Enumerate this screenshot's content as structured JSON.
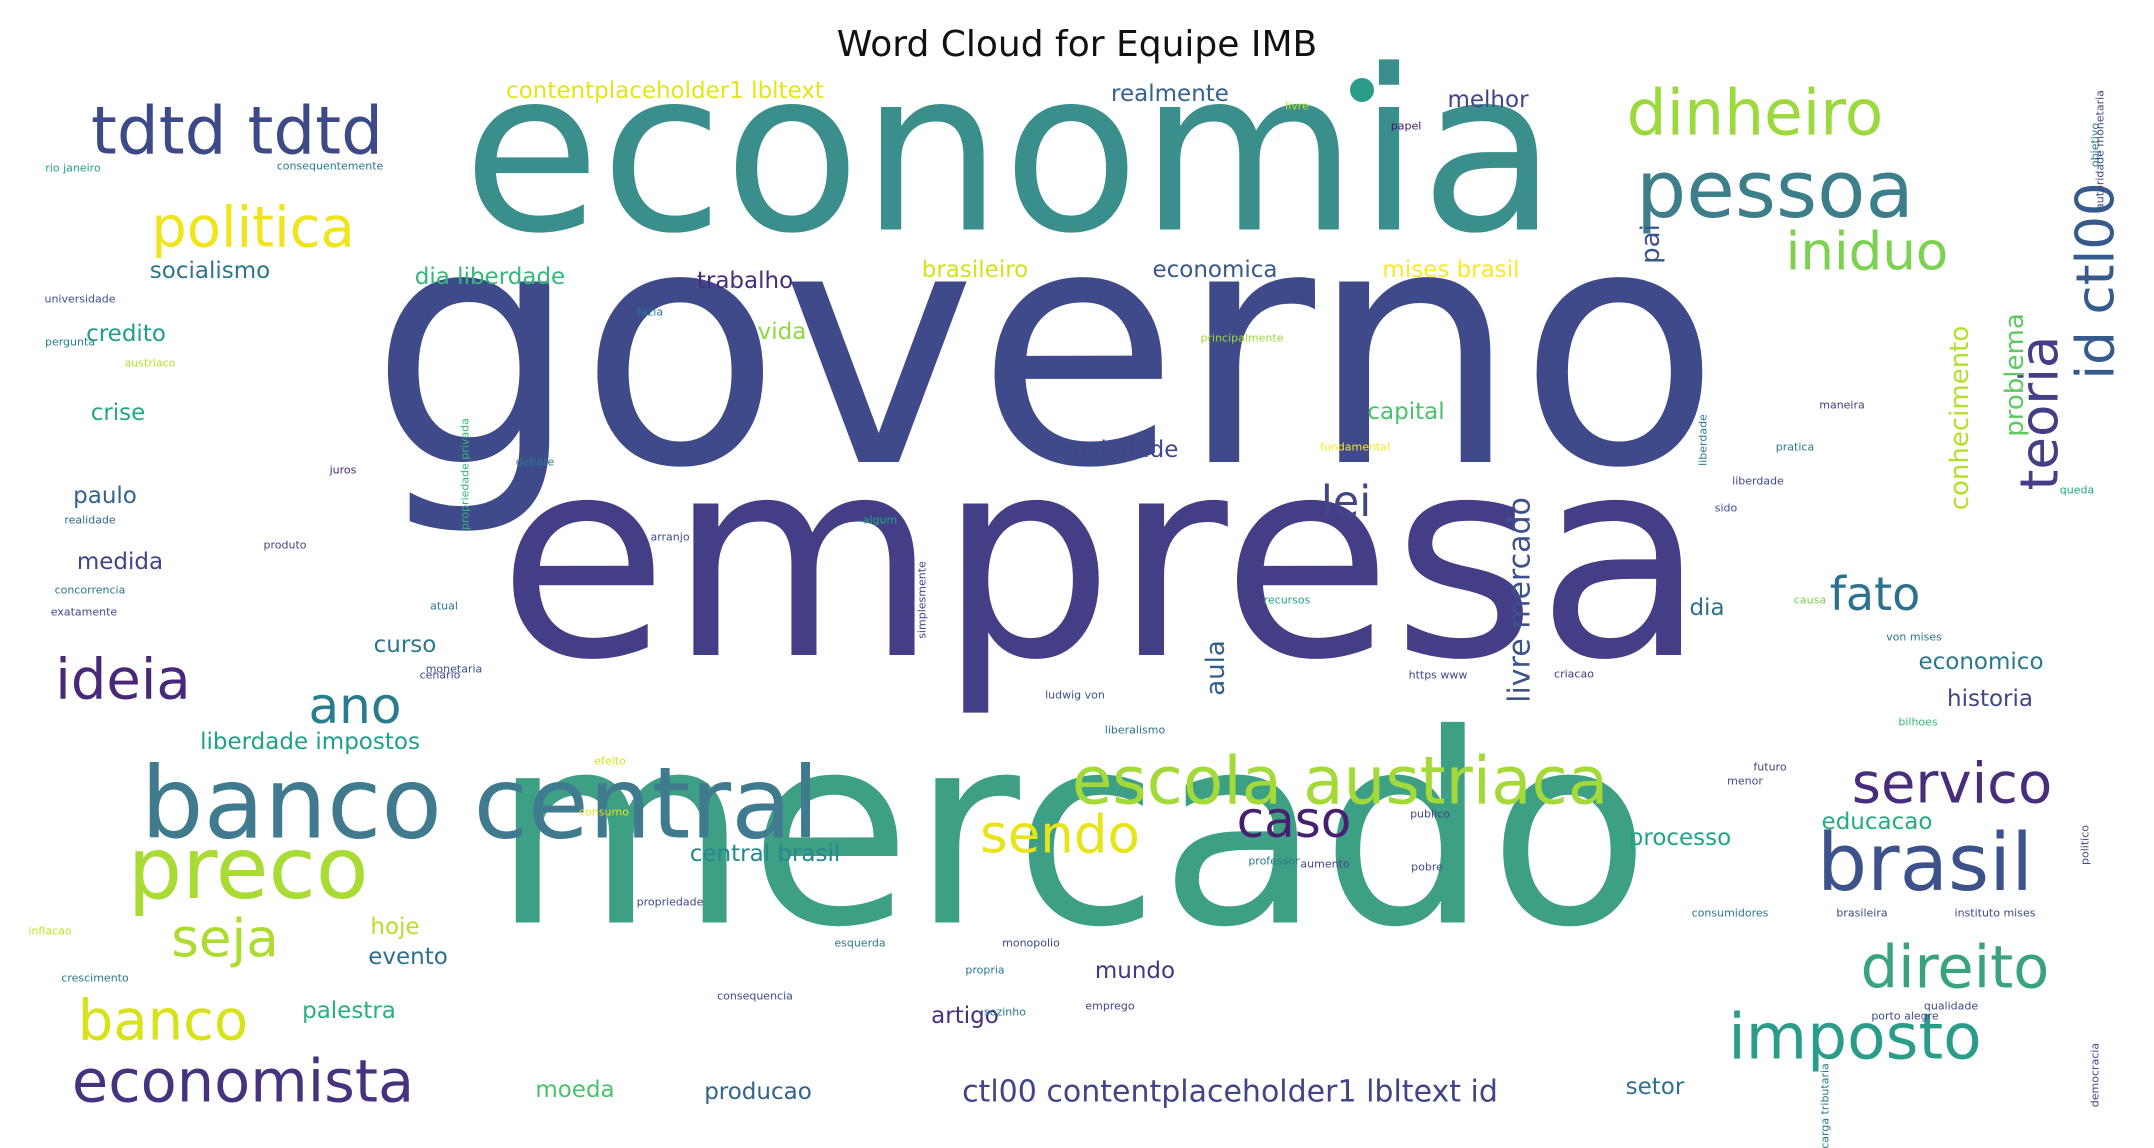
{
  "chart_data": {
    "type": "wordcloud",
    "title": "Word Cloud for Equipe IMB",
    "words": [
      {
        "text": "governo",
        "weight": 1.0,
        "color": "#3e4a89",
        "rotate": 0
      },
      {
        "text": "empresa",
        "weight": 0.84,
        "color": "#433e85",
        "rotate": 0
      },
      {
        "text": "mercado",
        "weight": 0.8,
        "color": "#3d9f84",
        "rotate": 0
      },
      {
        "text": "economia",
        "weight": 0.68,
        "color": "#3a8f8c",
        "rotate": 0
      },
      {
        "text": "banco central",
        "weight": 0.3,
        "color": "#3f7a8e",
        "rotate": 0
      },
      {
        "text": "preco",
        "weight": 0.26,
        "color": "#a8db34",
        "rotate": 0
      },
      {
        "text": "pessoa",
        "weight": 0.24,
        "color": "#3d7e8b",
        "rotate": 0
      },
      {
        "text": "brasil",
        "weight": 0.24,
        "color": "#3b528b",
        "rotate": 0
      },
      {
        "text": "escola austriaca",
        "weight": 0.2,
        "color": "#a3da37",
        "rotate": 0
      },
      {
        "text": "tdtd tdtd",
        "weight": 0.2,
        "color": "#3c4a87",
        "rotate": 0
      },
      {
        "text": "dinheiro",
        "weight": 0.19,
        "color": "#9bd93c",
        "rotate": 0
      },
      {
        "text": "imposto",
        "weight": 0.19,
        "color": "#2a9d8a",
        "rotate": 0
      },
      {
        "text": "direito",
        "weight": 0.18,
        "color": "#39a27f",
        "rotate": 0
      },
      {
        "text": "economista",
        "weight": 0.18,
        "color": "#46327e",
        "rotate": 0
      },
      {
        "text": "servico",
        "weight": 0.17,
        "color": "#472d7b",
        "rotate": 0
      },
      {
        "text": "politica",
        "weight": 0.17,
        "color": "#f0e41c",
        "rotate": 0
      },
      {
        "text": "ideia",
        "weight": 0.17,
        "color": "#482878",
        "rotate": 0
      },
      {
        "text": "banco",
        "weight": 0.17,
        "color": "#d8e219",
        "rotate": 0
      },
      {
        "text": "seja",
        "weight": 0.16,
        "color": "#addc30",
        "rotate": 0
      },
      {
        "text": "sendo",
        "weight": 0.16,
        "color": "#e8e419",
        "rotate": 0
      },
      {
        "text": "iniduo",
        "weight": 0.16,
        "color": "#7cd250",
        "rotate": 0
      },
      {
        "text": "teoria",
        "weight": 0.16,
        "color": "#433e85",
        "rotate": -90
      },
      {
        "text": "id ctl00",
        "weight": 0.16,
        "color": "#375a8c",
        "rotate": -90
      },
      {
        "text": "caso",
        "weight": 0.15,
        "color": "#481f70",
        "rotate": 0
      },
      {
        "text": "ano",
        "weight": 0.15,
        "color": "#287c8e",
        "rotate": 0
      },
      {
        "text": "fato",
        "weight": 0.14,
        "color": "#2c728e",
        "rotate": 0
      },
      {
        "text": "lei",
        "weight": 0.13,
        "color": "#404688",
        "rotate": 0
      },
      {
        "text": "ctl00 contentplaceholder1 lbltext id",
        "weight": 0.09,
        "color": "#414487",
        "rotate": 0
      },
      {
        "text": "livre mercado",
        "weight": 0.09,
        "color": "#3b528b",
        "rotate": -90
      },
      {
        "text": "conhecimento",
        "weight": 0.08,
        "color": "#b5de2b",
        "rotate": -90
      },
      {
        "text": "problema",
        "weight": 0.08,
        "color": "#5ec962",
        "rotate": -90
      },
      {
        "text": "aula",
        "weight": 0.08,
        "color": "#355e8d",
        "rotate": -90
      },
      {
        "text": "pai",
        "weight": 0.08,
        "color": "#3b528b",
        "rotate": -90
      },
      {
        "text": "contentplaceholder1 lbltext",
        "weight": 0.07,
        "color": "#e5e419",
        "rotate": 0
      },
      {
        "text": "realmente",
        "weight": 0.07,
        "color": "#33638d",
        "rotate": 0
      },
      {
        "text": "melhor",
        "weight": 0.07,
        "color": "#414487",
        "rotate": 0
      },
      {
        "text": "socialismo",
        "weight": 0.07,
        "color": "#2a768e",
        "rotate": 0
      },
      {
        "text": "dia liberdade",
        "weight": 0.07,
        "color": "#35b779",
        "rotate": 0
      },
      {
        "text": "trabalho",
        "weight": 0.07,
        "color": "#472c7a",
        "rotate": 0
      },
      {
        "text": "brasileiro",
        "weight": 0.07,
        "color": "#d2e21b",
        "rotate": 0
      },
      {
        "text": "economica",
        "weight": 0.07,
        "color": "#38598c",
        "rotate": 0
      },
      {
        "text": "mises brasil",
        "weight": 0.07,
        "color": "#fde725",
        "rotate": 0
      },
      {
        "text": "credito",
        "weight": 0.07,
        "color": "#1f9e89",
        "rotate": 0
      },
      {
        "text": "vida",
        "weight": 0.07,
        "color": "#90d743",
        "rotate": 0
      },
      {
        "text": "crise",
        "weight": 0.07,
        "color": "#22a884",
        "rotate": 0
      },
      {
        "text": "capital",
        "weight": 0.07,
        "color": "#4ac16d",
        "rotate": 0
      },
      {
        "text": "sociedade",
        "weight": 0.07,
        "color": "#3f4889",
        "rotate": 0
      },
      {
        "text": "paulo",
        "weight": 0.07,
        "color": "#33638d",
        "rotate": 0
      },
      {
        "text": "medida",
        "weight": 0.07,
        "color": "#414487",
        "rotate": 0
      },
      {
        "text": "curso",
        "weight": 0.07,
        "color": "#2a788e",
        "rotate": 0
      },
      {
        "text": "dia",
        "weight": 0.07,
        "color": "#2c728e",
        "rotate": 0
      },
      {
        "text": "economico",
        "weight": 0.07,
        "color": "#2a788e",
        "rotate": 0
      },
      {
        "text": "historia",
        "weight": 0.07,
        "color": "#404688",
        "rotate": 0
      },
      {
        "text": "liberdade impostos",
        "weight": 0.07,
        "color": "#1fa187",
        "rotate": 0
      },
      {
        "text": "processo",
        "weight": 0.07,
        "color": "#20a386",
        "rotate": 0
      },
      {
        "text": "central brasil",
        "weight": 0.07,
        "color": "#23898e",
        "rotate": 0
      },
      {
        "text": "educacao",
        "weight": 0.07,
        "color": "#25ab82",
        "rotate": 0
      },
      {
        "text": "hoje",
        "weight": 0.07,
        "color": "#b8de29",
        "rotate": 0
      },
      {
        "text": "evento",
        "weight": 0.07,
        "color": "#2d708e",
        "rotate": 0
      },
      {
        "text": "palestra",
        "weight": 0.07,
        "color": "#29af7f",
        "rotate": 0
      },
      {
        "text": "mundo",
        "weight": 0.07,
        "color": "#453781",
        "rotate": 0
      },
      {
        "text": "artigo",
        "weight": 0.07,
        "color": "#46307e",
        "rotate": 0
      },
      {
        "text": "moeda",
        "weight": 0.07,
        "color": "#4ac16d",
        "rotate": 0
      },
      {
        "text": "producao",
        "weight": 0.07,
        "color": "#33638d",
        "rotate": 0
      },
      {
        "text": "setor",
        "weight": 0.07,
        "color": "#2c728e",
        "rotate": 0
      },
      {
        "text": "livre",
        "weight": 0.02,
        "color": "#c2df23",
        "rotate": 0
      },
      {
        "text": "papel",
        "weight": 0.02,
        "color": "#481668",
        "rotate": 0
      },
      {
        "text": "rio janeiro",
        "weight": 0.02,
        "color": "#20a386",
        "rotate": 0
      },
      {
        "text": "consequentemente",
        "weight": 0.02,
        "color": "#2a788e",
        "rotate": 0
      },
      {
        "text": "universidade",
        "weight": 0.02,
        "color": "#39558c",
        "rotate": 0
      },
      {
        "text": "austriaco",
        "weight": 0.02,
        "color": "#b5de2b",
        "rotate": 0
      },
      {
        "text": "pergunta",
        "weight": 0.02,
        "color": "#27808e",
        "rotate": 0
      },
      {
        "text": "realidade",
        "weight": 0.02,
        "color": "#31688e",
        "rotate": 0
      },
      {
        "text": "concorrencia",
        "weight": 0.02,
        "color": "#2a788e",
        "rotate": 0
      },
      {
        "text": "exatamente",
        "weight": 0.02,
        "color": "#3e4a89",
        "rotate": 0
      },
      {
        "text": "fazia",
        "weight": 0.02,
        "color": "#287c8e",
        "rotate": 0
      },
      {
        "text": "juros",
        "weight": 0.02,
        "color": "#481f70",
        "rotate": 0
      },
      {
        "text": "debate",
        "weight": 0.02,
        "color": "#2a788e",
        "rotate": 0
      },
      {
        "text": "arranjo",
        "weight": 0.02,
        "color": "#3e4a89",
        "rotate": 0
      },
      {
        "text": "algum",
        "weight": 0.02,
        "color": "#22a884",
        "rotate": 0
      },
      {
        "text": "produto",
        "weight": 0.02,
        "color": "#404688",
        "rotate": 0
      },
      {
        "text": "atual",
        "weight": 0.02,
        "color": "#2a788e",
        "rotate": 0
      },
      {
        "text": "monetaria",
        "weight": 0.02,
        "color": "#3b528b",
        "rotate": 0
      },
      {
        "text": "cenario",
        "weight": 0.02,
        "color": "#3e4a89",
        "rotate": 0
      },
      {
        "text": "efeito",
        "weight": 0.02,
        "color": "#d8e219",
        "rotate": 0
      },
      {
        "text": "consumo",
        "weight": 0.02,
        "color": "#e5e419",
        "rotate": 0
      },
      {
        "text": "propriedade",
        "weight": 0.02,
        "color": "#3e4a89",
        "rotate": 0
      },
      {
        "text": "principalmente",
        "weight": 0.02,
        "color": "#9bd93c",
        "rotate": 0
      },
      {
        "text": "fundamental",
        "weight": 0.02,
        "color": "#fde725",
        "rotate": 0
      },
      {
        "text": "ludwig von",
        "weight": 0.02,
        "color": "#3b528b",
        "rotate": 0
      },
      {
        "text": "liberalismo",
        "weight": 0.02,
        "color": "#2d708e",
        "rotate": 0
      },
      {
        "text": "https www",
        "weight": 0.02,
        "color": "#3e4a89",
        "rotate": 0
      },
      {
        "text": "criacao",
        "weight": 0.02,
        "color": "#433e85",
        "rotate": 0
      },
      {
        "text": "recursos",
        "weight": 0.02,
        "color": "#22a884",
        "rotate": 0
      },
      {
        "text": "causa",
        "weight": 0.02,
        "color": "#7ad151",
        "rotate": 0
      },
      {
        "text": "von mises",
        "weight": 0.02,
        "color": "#2a788e",
        "rotate": 0
      },
      {
        "text": "bilhoes",
        "weight": 0.02,
        "color": "#35b779",
        "rotate": 0
      },
      {
        "text": "futuro",
        "weight": 0.02,
        "color": "#433e85",
        "rotate": 0
      },
      {
        "text": "menor",
        "weight": 0.02,
        "color": "#3e4a89",
        "rotate": 0
      },
      {
        "text": "publico",
        "weight": 0.02,
        "color": "#414487",
        "rotate": 0
      },
      {
        "text": "professor",
        "weight": 0.02,
        "color": "#287c8e",
        "rotate": 0
      },
      {
        "text": "aumento",
        "weight": 0.02,
        "color": "#404688",
        "rotate": 0
      },
      {
        "text": "pobre",
        "weight": 0.02,
        "color": "#3e4a89",
        "rotate": 0
      },
      {
        "text": "inflacao",
        "weight": 0.02,
        "color": "#c2df23",
        "rotate": 0
      },
      {
        "text": "crescimento",
        "weight": 0.02,
        "color": "#2a788e",
        "rotate": 0
      },
      {
        "text": "esquerda",
        "weight": 0.02,
        "color": "#2a788e",
        "rotate": 0
      },
      {
        "text": "propria",
        "weight": 0.02,
        "color": "#2a788e",
        "rotate": 0
      },
      {
        "text": "monopolio",
        "weight": 0.02,
        "color": "#3e4a89",
        "rotate": 0
      },
      {
        "text": "consequencia",
        "weight": 0.02,
        "color": "#3e4a89",
        "rotate": 0
      },
      {
        "text": "sozinho",
        "weight": 0.02,
        "color": "#2a788e",
        "rotate": 0
      },
      {
        "text": "emprego",
        "weight": 0.02,
        "color": "#404688",
        "rotate": 0
      },
      {
        "text": "consumidores",
        "weight": 0.02,
        "color": "#2a788e",
        "rotate": 0
      },
      {
        "text": "brasileira",
        "weight": 0.02,
        "color": "#3e4a89",
        "rotate": 0
      },
      {
        "text": "instituto mises",
        "weight": 0.02,
        "color": "#3e4a89",
        "rotate": 0
      },
      {
        "text": "porto alegre",
        "weight": 0.02,
        "color": "#3e4a89",
        "rotate": 0
      },
      {
        "text": "qualidade",
        "weight": 0.02,
        "color": "#3e4a89",
        "rotate": 0
      },
      {
        "text": "maneira",
        "weight": 0.02,
        "color": "#433e85",
        "rotate": 0
      },
      {
        "text": "pratica",
        "weight": 0.02,
        "color": "#2a788e",
        "rotate": 0
      },
      {
        "text": "queda",
        "weight": 0.02,
        "color": "#22a884",
        "rotate": 0
      },
      {
        "text": "sido",
        "weight": 0.02,
        "color": "#3e4a89",
        "rotate": 0
      },
      {
        "text": "liberdade",
        "weight": 0.02,
        "color": "#3e4a89",
        "rotate": 0
      },
      {
        "text": "carga tributaria",
        "weight": 0.02,
        "color": "#2a788e",
        "rotate": -90
      },
      {
        "text": "objetivo",
        "weight": 0.02,
        "color": "#2a788e",
        "rotate": -90
      },
      {
        "text": "autoridade monetaria",
        "weight": 0.02,
        "color": "#3e4a89",
        "rotate": -90
      },
      {
        "text": "politico",
        "weight": 0.02,
        "color": "#3e4a89",
        "rotate": -90
      },
      {
        "text": "democracia",
        "weight": 0.02,
        "color": "#3e4a89",
        "rotate": -90
      },
      {
        "text": "propriedade privada",
        "weight": 0.02,
        "color": "#35b779",
        "rotate": -90
      },
      {
        "text": "simplesmente",
        "weight": 0.02,
        "color": "#3e4a89",
        "rotate": -90
      },
      {
        "text": "liberdade",
        "weight": 0.02,
        "color": "#2a788e",
        "rotate": -90
      }
    ]
  }
}
